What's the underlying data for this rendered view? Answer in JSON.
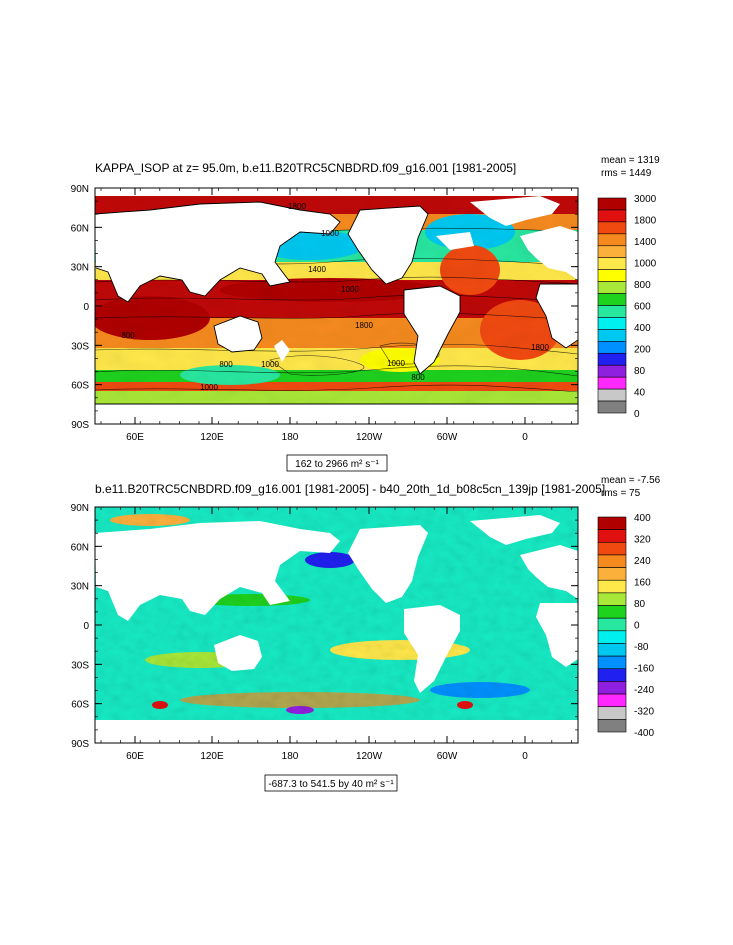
{
  "chart_data": [
    {
      "type": "heatmap",
      "title": "KAPPA_ISOP at z=  95.0m, b.e11.B20TRC5CNBDRD.f09_g16.001 [1981-2005]",
      "stats": {
        "mean": "mean = 1319",
        "rms": "rms = 1449"
      },
      "range_label": "162 to 2966 m² s⁻¹",
      "x_ticks": [
        "60E",
        "120E",
        "180",
        "120W",
        "60W",
        "0"
      ],
      "y_ticks": [
        "90N",
        "60N",
        "30N",
        "0",
        "30S",
        "60S",
        "90S"
      ],
      "colorbar": {
        "labels": [
          "3000",
          "1800",
          "1400",
          "1000",
          "800",
          "600",
          "400",
          "200",
          "80",
          "40",
          "0"
        ],
        "colors": [
          "#b00000",
          "#e01010",
          "#f04a10",
          "#f58a1e",
          "#fbb03c",
          "#ffe84a",
          "#ffff00",
          "#a8e838",
          "#1ed21e",
          "#28e8a0",
          "#00f0f0",
          "#00c8f0",
          "#0090ff",
          "#2020f0",
          "#9020e0",
          "#ff28ff",
          "#c8c8c8",
          "#808080"
        ]
      },
      "contour_labels": [
        "1800",
        "1000",
        "1400",
        "1800",
        "1000",
        "1000",
        "1000",
        "800",
        "800",
        "800",
        "1800",
        "1000"
      ]
    },
    {
      "type": "heatmap",
      "title": "b.e11.B20TRC5CNBDRD.f09_g16.001 [1981-2005] - b40_20th_1d_b08c5cn_139jp [1981-2005]",
      "stats": {
        "mean": "mean = -7.56",
        "rms": "rms = 75"
      },
      "range_label": "-687.3 to 541.5 by 40 m² s⁻¹",
      "x_ticks": [
        "60E",
        "120E",
        "180",
        "120W",
        "60W",
        "0"
      ],
      "y_ticks": [
        "90N",
        "60N",
        "30N",
        "0",
        "30S",
        "60S",
        "90S"
      ],
      "colorbar": {
        "labels": [
          "400",
          "320",
          "240",
          "160",
          "80",
          "0",
          "-80",
          "-160",
          "-240",
          "-320",
          "-400"
        ],
        "colors": [
          "#b00000",
          "#e01010",
          "#f04a10",
          "#f58a1e",
          "#fbb03c",
          "#ffe84a",
          "#a8e838",
          "#1ed21e",
          "#28e8a0",
          "#00f0f0",
          "#00c8f0",
          "#0090ff",
          "#2020f0",
          "#9020e0",
          "#ff28ff",
          "#c8c8c8",
          "#808080"
        ]
      }
    }
  ]
}
